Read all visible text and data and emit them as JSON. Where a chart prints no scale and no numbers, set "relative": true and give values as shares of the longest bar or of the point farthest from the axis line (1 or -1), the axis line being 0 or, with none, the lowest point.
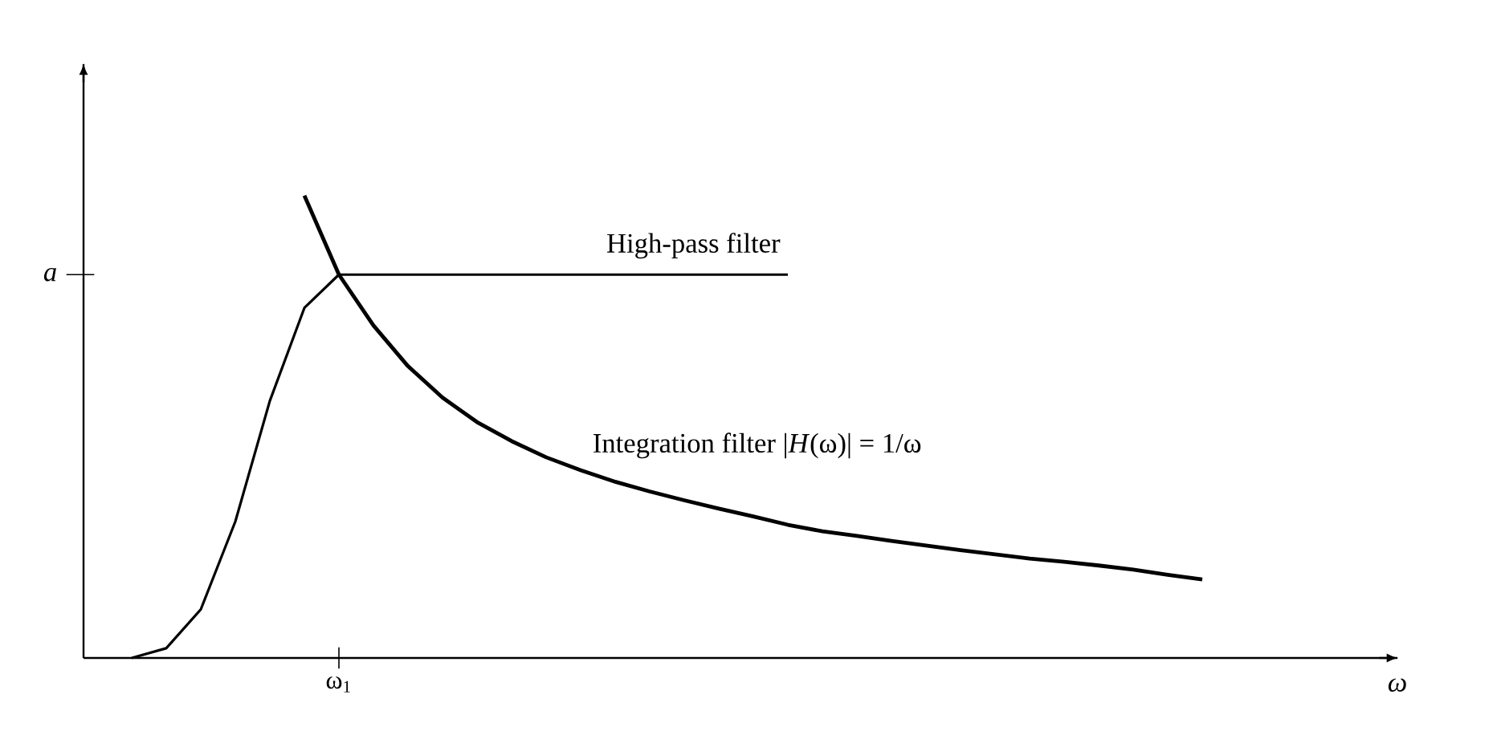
{
  "chart_data": {
    "type": "line",
    "relative": true,
    "annotations": [
      "ω$_{1}$",
      "*a*",
      "*ω*"
    ],
    "categories": [
      null,
      null,
      null,
      null,
      null,
      null,
      null,
      null,
      null,
      null,
      null,
      null,
      null,
      null,
      null,
      null,
      null,
      null,
      null,
      null,
      null,
      null,
      null,
      null,
      null,
      null,
      null,
      null,
      null,
      null,
      null,
      null
    ],
    "series": [
      {
        "name": "High-pass filter",
        "color": "#000000",
        "values": [
          0,
          0.021,
          0.105,
          0.295,
          0.556,
          0.757,
          0.829,
          0.829,
          0.829,
          0.829,
          0.829,
          0.829,
          0.829,
          0.829,
          0.829,
          0.829,
          0.829,
          0.829,
          0.829,
          0.829,
          null,
          null,
          null,
          null,
          null,
          null,
          null,
          null,
          null,
          null,
          null,
          null
        ]
      },
      {
        "name": "Integration filter |*H*(ω)| = 1/ω",
        "color": "#000000",
        "values": [
          null,
          null,
          null,
          null,
          null,
          1.0,
          0.829,
          0.719,
          0.631,
          0.563,
          0.51,
          0.469,
          0.434,
          0.406,
          0.381,
          0.36,
          0.341,
          0.323,
          0.306,
          0.288,
          0.274,
          0.264,
          0.253,
          0.243,
          0.233,
          0.224,
          0.215,
          0.208,
          0.2,
          0.191,
          0.18,
          0.17
        ]
      }
    ],
    "legend": false,
    "marker": "none",
    "line_style": "solid"
  }
}
